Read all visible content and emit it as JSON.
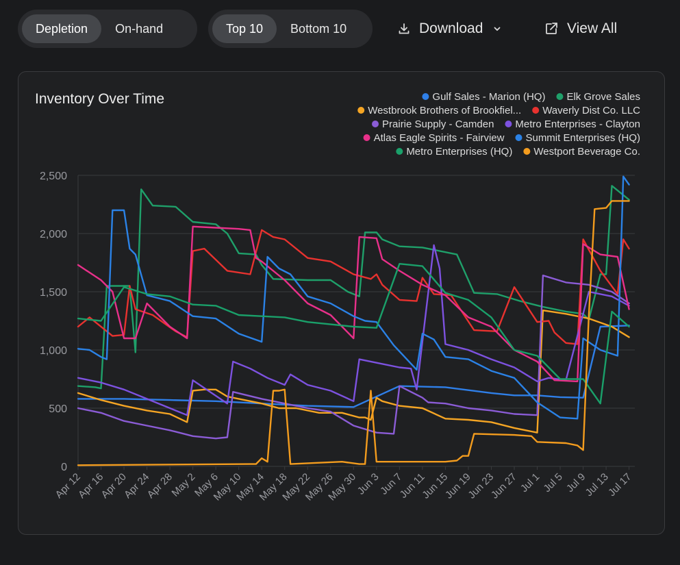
{
  "toolbar": {
    "metric_tabs": [
      {
        "label": "Depletion",
        "active": true
      },
      {
        "label": "On-hand",
        "active": false
      }
    ],
    "rank_tabs": [
      {
        "label": "Top 10",
        "active": true
      },
      {
        "label": "Bottom 10",
        "active": false
      }
    ],
    "download_label": "Download",
    "download_icon": "download-icon",
    "download_caret_icon": "chevron-down-icon",
    "view_all_label": "View All",
    "view_all_icon": "external-link-icon"
  },
  "colors": {
    "page_bg": "#1a1b1d",
    "card_bg": "#1f2022",
    "grid": "#3a3b3e",
    "axis_text": "#9a9ba0"
  },
  "chart_data": {
    "type": "line",
    "title": "Inventory Over Time",
    "xlabel": "",
    "ylabel": "",
    "ylim": [
      0,
      2500
    ],
    "yticks": [
      0,
      500,
      1000,
      1500,
      2000,
      2500
    ],
    "ytick_labels": [
      "0",
      "500",
      "1,000",
      "1,500",
      "2,000",
      "2,500"
    ],
    "x_start": "2025-04-12",
    "x_end": "2025-07-18",
    "x_tick_labels": [
      "Apr 12",
      "Apr 16",
      "Apr 20",
      "Apr 24",
      "Apr 28",
      "May 2",
      "May 6",
      "May 10",
      "May 14",
      "May 18",
      "May 22",
      "May 26",
      "May 30",
      "Jun 3",
      "Jun 7",
      "Jun 11",
      "Jun 15",
      "Jun 19",
      "Jun 23",
      "Jun 27",
      "Jul 1",
      "Jul 5",
      "Jul 9",
      "Jul 13",
      "Jul 17"
    ],
    "grid": true,
    "legend_position": "top-right",
    "series": [
      {
        "name": "Gulf Sales - Marion (HQ)",
        "color": "#2f7fe8",
        "x": [
          "Apr 12",
          "Apr 20",
          "Apr 28",
          "May 6",
          "May 14",
          "May 22",
          "May 30",
          "Jun 7",
          "Jun 15",
          "Jun 23",
          "Jun 27",
          "Jul 1",
          "Jul 5",
          "Jul 9",
          "Jul 12",
          "Jul 17"
        ],
        "y": [
          580,
          580,
          570,
          560,
          540,
          520,
          510,
          690,
          680,
          630,
          610,
          610,
          595,
          590,
          1200,
          1210
        ]
      },
      {
        "name": "Elk Grove Sales",
        "color": "#1fa06a",
        "x": [
          "Apr 12",
          "Apr 15",
          "Apr 16",
          "Apr 17",
          "Apr 21",
          "Apr 22",
          "Apr 23",
          "Apr 25",
          "Apr 29",
          "May 2",
          "May 6",
          "May 8",
          "May 10",
          "May 13",
          "May 14",
          "May 16",
          "May 22",
          "May 26",
          "May 29",
          "May 31",
          "Jun 1",
          "Jun 3",
          "Jun 4",
          "Jun 7",
          "Jun 11",
          "Jun 17",
          "Jun 20",
          "Jun 24",
          "Jun 28",
          "Jul 2",
          "Jul 6",
          "Jul 9",
          "Jul 10",
          "Jul 12",
          "Jul 13",
          "Jul 14",
          "Jul 17"
        ],
        "y": [
          690,
          680,
          670,
          1550,
          1550,
          980,
          2380,
          2240,
          2230,
          2100,
          2080,
          2000,
          1830,
          1820,
          1730,
          1610,
          1600,
          1600,
          1500,
          1460,
          2010,
          2010,
          1950,
          1890,
          1880,
          1820,
          1490,
          1480,
          1420,
          1370,
          1330,
          1310,
          1260,
          1650,
          1650,
          2410,
          2290
        ]
      },
      {
        "name": "Westbrook Brothers of Brookfiel...",
        "color": "#f5a524",
        "x": [
          "Apr 12",
          "Apr 16",
          "Apr 20",
          "Apr 24",
          "Apr 28",
          "May 1",
          "May 2",
          "May 4",
          "May 6",
          "May 8",
          "May 10",
          "May 14",
          "May 17",
          "May 20",
          "May 24",
          "May 28",
          "May 31",
          "Jun 1",
          "Jun 2",
          "Jun 3",
          "Jun 4",
          "Jun 7",
          "Jun 11",
          "Jun 15",
          "Jun 19",
          "Jun 23",
          "Jun 27",
          "Jun 30",
          "Jul 1",
          "Jul 2",
          "Jul 6",
          "Jul 10",
          "Jul 14",
          "Jul 17"
        ],
        "y": [
          630,
          570,
          520,
          480,
          450,
          380,
          650,
          660,
          660,
          600,
          580,
          540,
          500,
          500,
          460,
          460,
          420,
          420,
          400,
          590,
          560,
          520,
          500,
          410,
          400,
          380,
          330,
          300,
          290,
          1340,
          1310,
          1270,
          1200,
          1110
        ]
      },
      {
        "name": "Waverly Dist Co. LLC",
        "color": "#e8322f",
        "x": [
          "Apr 12",
          "Apr 14",
          "Apr 18",
          "Apr 20",
          "Apr 21",
          "Apr 22",
          "Apr 25",
          "Apr 29",
          "May 1",
          "May 2",
          "May 4",
          "May 8",
          "May 12",
          "May 14",
          "May 16",
          "May 18",
          "May 22",
          "May 26",
          "May 30",
          "Jun 2",
          "Jun 3",
          "Jun 4",
          "Jun 7",
          "Jun 10",
          "Jun 11",
          "Jun 13",
          "Jun 16",
          "Jun 20",
          "Jun 24",
          "Jun 27",
          "Jul 1",
          "Jul 3",
          "Jul 4",
          "Jul 6",
          "Jul 8",
          "Jul 9",
          "Jul 12",
          "Jul 15",
          "Jul 16",
          "Jul 17"
        ],
        "y": [
          1200,
          1280,
          1120,
          1130,
          1550,
          1350,
          1300,
          1160,
          1110,
          1850,
          1870,
          1680,
          1650,
          2030,
          1970,
          1950,
          1790,
          1760,
          1650,
          1610,
          1650,
          1560,
          1430,
          1420,
          1620,
          1480,
          1470,
          1170,
          1160,
          1540,
          1240,
          1250,
          1150,
          1060,
          1050,
          1950,
          1680,
          1480,
          1950,
          1870
        ]
      },
      {
        "name": "Prairie Supply - Camden",
        "color": "#8b5cd6",
        "x": [
          "Apr 12",
          "Apr 16",
          "Apr 20",
          "Apr 24",
          "Apr 28",
          "May 2",
          "May 6",
          "May 8",
          "May 9",
          "May 14",
          "May 18",
          "May 22",
          "May 26",
          "May 30",
          "Jun 3",
          "Jun 6",
          "Jun 7",
          "Jun 11",
          "Jun 12",
          "Jun 15",
          "Jun 19",
          "Jun 23",
          "Jun 27",
          "Jul 1",
          "Jul 2",
          "Jul 6",
          "Jul 10",
          "Jul 14",
          "Jul 17"
        ],
        "y": [
          500,
          460,
          390,
          350,
          310,
          260,
          240,
          250,
          640,
          580,
          540,
          500,
          470,
          350,
          290,
          280,
          690,
          590,
          550,
          540,
          500,
          480,
          450,
          440,
          1640,
          1580,
          1560,
          1500,
          1400
        ]
      },
      {
        "name": "Metro Enterprises - Clayton",
        "color": "#7d52e0",
        "x": [
          "Apr 12",
          "Apr 16",
          "Apr 20",
          "Apr 24",
          "Apr 28",
          "May 1",
          "May 2",
          "May 5",
          "May 8",
          "May 9",
          "May 12",
          "May 15",
          "May 18",
          "May 19",
          "May 22",
          "May 26",
          "May 30",
          "May 31",
          "Jun 3",
          "Jun 7",
          "Jun 9",
          "Jun 10",
          "Jun 13",
          "Jun 14",
          "Jun 15",
          "Jun 19",
          "Jun 23",
          "Jun 27",
          "Jul 1",
          "Jul 3",
          "Jul 6",
          "Jul 10",
          "Jul 14",
          "Jul 17"
        ],
        "y": [
          760,
          720,
          660,
          580,
          500,
          440,
          740,
          640,
          540,
          900,
          840,
          760,
          700,
          790,
          700,
          650,
          560,
          920,
          890,
          850,
          840,
          660,
          1900,
          1700,
          1050,
          1000,
          920,
          850,
          730,
          760,
          740,
          1500,
          1460,
          1380
        ]
      },
      {
        "name": "Atlas Eagle Spirits - Fairview",
        "color": "#e8308a",
        "x": [
          "Apr 12",
          "Apr 16",
          "Apr 18",
          "Apr 20",
          "Apr 22",
          "Apr 24",
          "Apr 28",
          "May 1",
          "May 2",
          "May 6",
          "May 10",
          "May 12",
          "May 13",
          "May 14",
          "May 18",
          "May 22",
          "May 26",
          "May 30",
          "May 31",
          "Jun 3",
          "Jun 4",
          "Jun 7",
          "Jun 11",
          "Jun 15",
          "Jun 19",
          "Jun 23",
          "Jun 27",
          "Jul 1",
          "Jul 4",
          "Jul 8",
          "Jul 9",
          "Jul 12",
          "Jul 15",
          "Jul 17"
        ],
        "y": [
          1730,
          1600,
          1500,
          1100,
          1100,
          1400,
          1200,
          1100,
          2060,
          2050,
          2040,
          2030,
          1790,
          1760,
          1600,
          1400,
          1300,
          1100,
          1970,
          1960,
          1780,
          1680,
          1560,
          1470,
          1280,
          1200,
          1000,
          900,
          740,
          730,
          1910,
          1820,
          1800,
          1350
        ]
      },
      {
        "name": "Summit Enterprises (HQ)",
        "color": "#2b82e6",
        "x": [
          "Apr 12",
          "Apr 14",
          "Apr 16",
          "Apr 17",
          "Apr 18",
          "Apr 20",
          "Apr 21",
          "Apr 22",
          "Apr 24",
          "Apr 28",
          "May 2",
          "May 6",
          "May 10",
          "May 14",
          "May 15",
          "May 17",
          "May 19",
          "May 22",
          "May 26",
          "May 30",
          "Jun 1",
          "Jun 3",
          "Jun 6",
          "Jun 10",
          "Jun 11",
          "Jun 13",
          "Jun 15",
          "Jun 19",
          "Jun 23",
          "Jun 27",
          "Jul 1",
          "Jul 5",
          "Jul 8",
          "Jul 9",
          "Jul 12",
          "Jul 15",
          "Jul 16",
          "Jul 17"
        ],
        "y": [
          1010,
          1000,
          940,
          920,
          2200,
          2200,
          1870,
          1820,
          1470,
          1420,
          1290,
          1270,
          1140,
          1070,
          1800,
          1700,
          1650,
          1460,
          1400,
          1290,
          1250,
          1240,
          1040,
          830,
          1140,
          1090,
          940,
          920,
          820,
          760,
          550,
          420,
          410,
          1100,
          1000,
          950,
          2490,
          2420
        ]
      },
      {
        "name": "Metro Enterprises (HQ)",
        "color": "#1aa06a",
        "x": [
          "Apr 12",
          "Apr 16",
          "Apr 20",
          "Apr 24",
          "Apr 28",
          "May 2",
          "May 6",
          "May 10",
          "May 14",
          "May 18",
          "May 22",
          "May 26",
          "May 30",
          "Jun 3",
          "Jun 7",
          "Jun 11",
          "Jun 15",
          "Jun 19",
          "Jun 23",
          "Jun 27",
          "Jul 1",
          "Jul 5",
          "Jul 9",
          "Jul 12",
          "Jul 14",
          "Jul 17"
        ],
        "y": [
          1270,
          1250,
          1540,
          1480,
          1460,
          1390,
          1380,
          1300,
          1290,
          1280,
          1240,
          1220,
          1200,
          1190,
          1740,
          1720,
          1490,
          1430,
          1280,
          1000,
          950,
          750,
          750,
          540,
          1330,
          1200
        ]
      },
      {
        "name": "Westport Beverage Co.",
        "color": "#f39c1e",
        "x": [
          "Apr 12",
          "May 12",
          "May 13",
          "May 14",
          "May 15",
          "May 16",
          "May 17",
          "May 18",
          "May 19",
          "May 28",
          "May 31",
          "Jun 1",
          "Jun 2",
          "Jun 3",
          "Jun 4",
          "Jun 11",
          "Jun 15",
          "Jun 17",
          "Jun 18",
          "Jun 19",
          "Jun 20",
          "Jun 27",
          "Jun 30",
          "Jul 1",
          "Jul 6",
          "Jul 8",
          "Jul 9",
          "Jul 10",
          "Jul 11",
          "Jul 13",
          "Jul 14",
          "Jul 17"
        ],
        "y": [
          10,
          20,
          20,
          70,
          40,
          650,
          650,
          660,
          20,
          40,
          20,
          20,
          650,
          40,
          40,
          40,
          40,
          50,
          90,
          90,
          280,
          270,
          260,
          210,
          200,
          180,
          140,
          1300,
          2210,
          2220,
          2280,
          2280
        ]
      }
    ]
  }
}
